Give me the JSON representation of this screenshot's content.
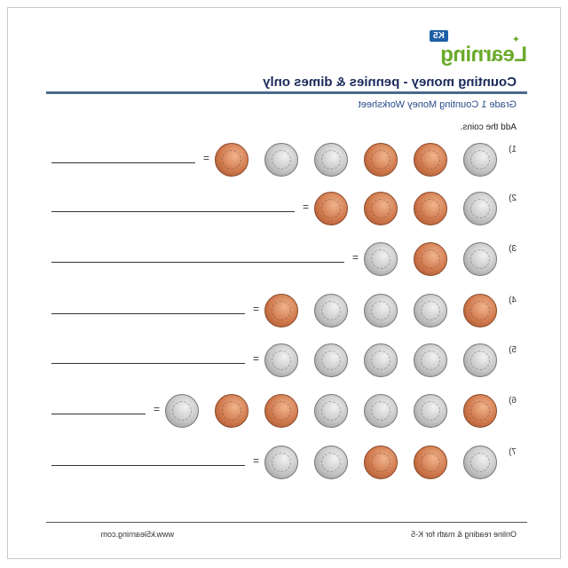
{
  "logo": {
    "badge": "K5",
    "text": "Learning"
  },
  "title": "Counting money - pennies & dimes only",
  "subtitle": "Grade 1 Counting Money Worksheet",
  "instruction": "Add the coins.",
  "equals_sign": "=",
  "rows": [
    {
      "label": "1)",
      "coins": [
        "dime",
        "penny",
        "penny",
        "dime",
        "dime",
        "penny"
      ]
    },
    {
      "label": "2)",
      "coins": [
        "dime",
        "penny",
        "penny",
        "penny"
      ]
    },
    {
      "label": "3)",
      "coins": [
        "dime",
        "penny",
        "dime"
      ]
    },
    {
      "label": "4)",
      "coins": [
        "penny",
        "dime",
        "dime",
        "dime",
        "penny"
      ]
    },
    {
      "label": "5)",
      "coins": [
        "dime",
        "dime",
        "dime",
        "dime",
        "dime"
      ]
    },
    {
      "label": "6)",
      "coins": [
        "penny",
        "dime",
        "dime",
        "dime",
        "penny",
        "penny",
        "dime"
      ]
    },
    {
      "label": "7)",
      "coins": [
        "dime",
        "penny",
        "penny",
        "dime",
        "dime"
      ]
    }
  ],
  "footer": {
    "left": "Online reading & math for K-5",
    "right": "www.k5learning.com"
  }
}
